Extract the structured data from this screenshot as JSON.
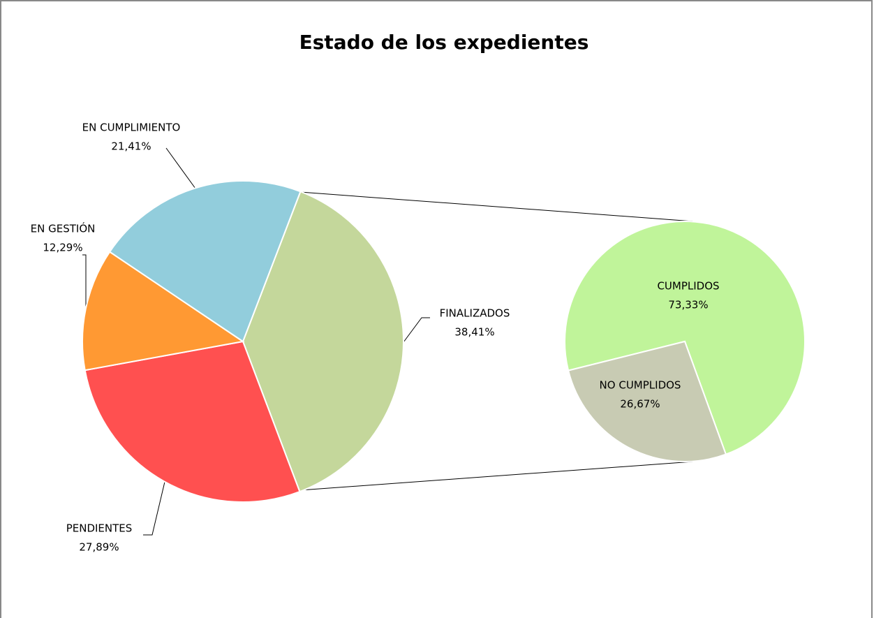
{
  "chart_data": [
    {
      "type": "pie",
      "title": "Estado de los expedientes",
      "categories": [
        "FINALIZADOS",
        "PENDIENTES",
        "EN GESTIÓN",
        "EN CUMPLIMIENTO"
      ],
      "values": [
        38.41,
        27.89,
        12.29,
        21.41
      ],
      "value_labels": [
        "38,41%",
        "27,89%",
        "12,29%",
        "21,41%"
      ],
      "colors": [
        "#c4d79b",
        "#ff5050",
        "#ff9933",
        "#92cddc"
      ]
    },
    {
      "type": "pie",
      "categories": [
        "CUMPLIDOS",
        "NO CUMPLIDOS"
      ],
      "values": [
        73.33,
        26.67
      ],
      "value_labels": [
        "73,33%",
        "26,67%"
      ],
      "colors": [
        "#c0f49a",
        "#c8cbb3"
      ]
    }
  ]
}
